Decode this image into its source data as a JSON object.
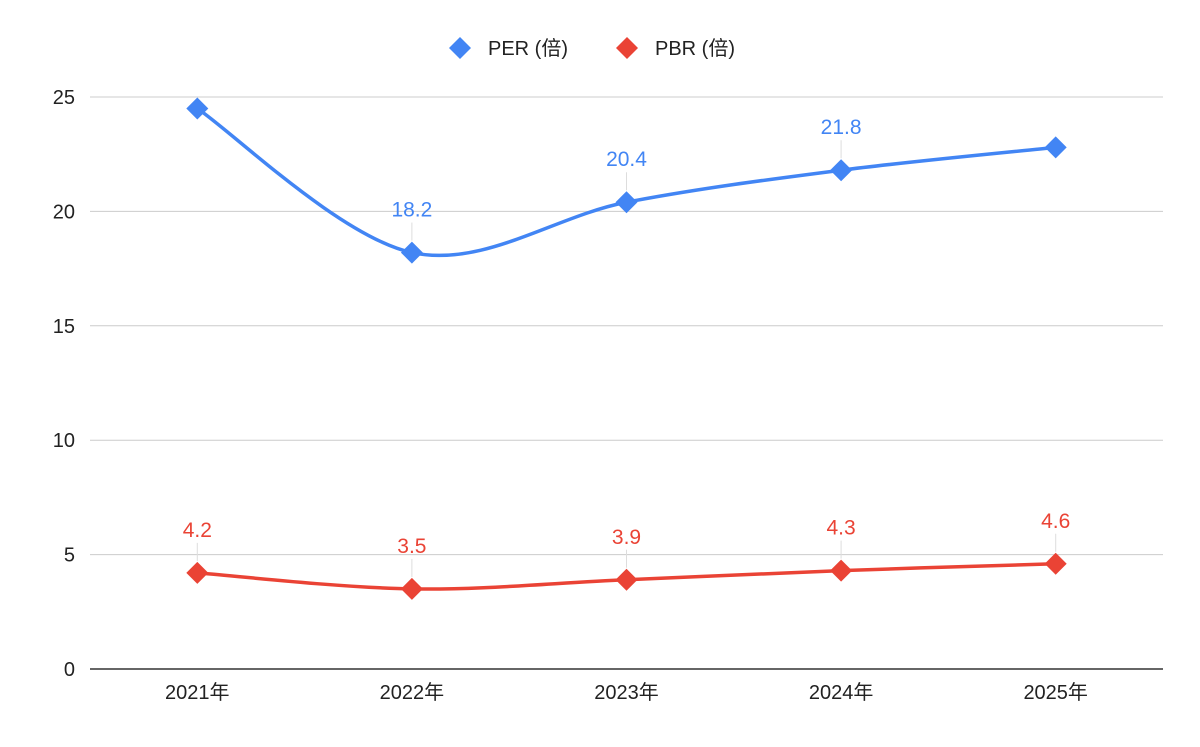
{
  "chart_data": {
    "type": "line",
    "title": "",
    "xlabel": "",
    "ylabel": "",
    "categories": [
      "2021年",
      "2022年",
      "2023年",
      "2024年",
      "2025年"
    ],
    "ylim": [
      0,
      25
    ],
    "yticks": [
      0,
      5,
      10,
      15,
      20,
      25
    ],
    "grid": true,
    "legend_position": "top-center",
    "smooth": true,
    "series": [
      {
        "name": "PER (倍)",
        "color": "#4285f4",
        "values": [
          24.5,
          18.2,
          20.4,
          21.8,
          22.8
        ],
        "labels": [
          null,
          "18.2",
          "20.4",
          "21.8",
          null
        ]
      },
      {
        "name": "PBR (倍)",
        "color": "#ea4335",
        "values": [
          4.2,
          3.5,
          3.9,
          4.3,
          4.6
        ],
        "labels": [
          "4.2",
          "3.5",
          "3.9",
          "4.3",
          "4.6"
        ]
      }
    ]
  }
}
